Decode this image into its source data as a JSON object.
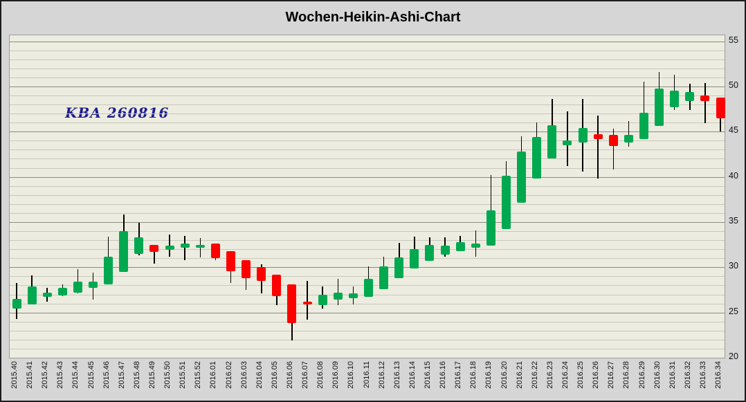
{
  "window": {
    "title": "Wochen-Heikin-Ashi-Chart",
    "annotation": "KBA 260816"
  },
  "chart_data": {
    "type": "candlestick",
    "subtype": "heikin-ashi-weekly",
    "title": "Wochen-Heikin-Ashi-Chart",
    "annotation": "KBA 260816",
    "legend_position": "none",
    "grid": "on",
    "y_axis": {
      "side": "right",
      "min": 20,
      "max": 55,
      "major_step": 5,
      "minor_step": 1,
      "tick_labels": [
        "20",
        "25",
        "30",
        "35",
        "40",
        "45",
        "50",
        "55"
      ]
    },
    "colors": {
      "up": "#00a94f",
      "down": "#fe0000",
      "wick": "#000000",
      "plot_bg": "#edece0",
      "window_bg": "#d6d6d6",
      "grid_minor": "#c9c8bb",
      "grid_major": "#8a8a82"
    },
    "candles": [
      {
        "x": "2015.40",
        "open": 25.4,
        "high": 28.3,
        "low": 24.3,
        "close": 26.5
      },
      {
        "x": "2015.41",
        "open": 25.9,
        "high": 29.1,
        "low": 25.9,
        "close": 27.9
      },
      {
        "x": "2015.42",
        "open": 26.7,
        "high": 27.7,
        "low": 26.2,
        "close": 27.2
      },
      {
        "x": "2015.43",
        "open": 26.9,
        "high": 28.1,
        "low": 26.8,
        "close": 27.7
      },
      {
        "x": "2015.44",
        "open": 27.2,
        "high": 29.8,
        "low": 27.1,
        "close": 28.4
      },
      {
        "x": "2015.45",
        "open": 27.7,
        "high": 29.4,
        "low": 26.4,
        "close": 28.4
      },
      {
        "x": "2015.46",
        "open": 28.1,
        "high": 33.4,
        "low": 28.1,
        "close": 31.2
      },
      {
        "x": "2015.47",
        "open": 29.5,
        "high": 35.8,
        "low": 29.5,
        "close": 34.0
      },
      {
        "x": "2015.48",
        "open": 31.5,
        "high": 34.9,
        "low": 31.3,
        "close": 33.3
      },
      {
        "x": "2015.49",
        "open": 32.5,
        "high": 32.5,
        "low": 30.4,
        "close": 31.7
      },
      {
        "x": "2015.50",
        "open": 31.9,
        "high": 33.6,
        "low": 31.2,
        "close": 32.4
      },
      {
        "x": "2015.51",
        "open": 32.2,
        "high": 33.5,
        "low": 30.8,
        "close": 32.6
      },
      {
        "x": "2015.52",
        "open": 32.2,
        "high": 33.2,
        "low": 31.1,
        "close": 32.5
      },
      {
        "x": "2016.01",
        "open": 32.6,
        "high": 32.6,
        "low": 30.8,
        "close": 31.0
      },
      {
        "x": "2016.02",
        "open": 31.8,
        "high": 31.8,
        "low": 28.3,
        "close": 29.6
      },
      {
        "x": "2016.03",
        "open": 30.8,
        "high": 30.8,
        "low": 27.5,
        "close": 28.8
      },
      {
        "x": "2016.04",
        "open": 30.0,
        "high": 30.3,
        "low": 27.1,
        "close": 28.5
      },
      {
        "x": "2016.05",
        "open": 29.2,
        "high": 29.2,
        "low": 25.8,
        "close": 26.8
      },
      {
        "x": "2016.06",
        "open": 28.1,
        "high": 28.1,
        "low": 21.9,
        "close": 23.8
      },
      {
        "x": "2016.07",
        "open": 26.2,
        "high": 28.5,
        "low": 24.2,
        "close": 25.9
      },
      {
        "x": "2016.08",
        "open": 25.8,
        "high": 27.9,
        "low": 25.4,
        "close": 27.0
      },
      {
        "x": "2016.09",
        "open": 26.4,
        "high": 28.7,
        "low": 25.8,
        "close": 27.2
      },
      {
        "x": "2016.10",
        "open": 26.6,
        "high": 27.9,
        "low": 25.9,
        "close": 27.1
      },
      {
        "x": "2016.11",
        "open": 26.7,
        "high": 30.1,
        "low": 26.7,
        "close": 28.7
      },
      {
        "x": "2016.12",
        "open": 27.6,
        "high": 31.2,
        "low": 27.6,
        "close": 30.1
      },
      {
        "x": "2016.13",
        "open": 28.8,
        "high": 32.7,
        "low": 28.8,
        "close": 31.1
      },
      {
        "x": "2016.14",
        "open": 29.9,
        "high": 33.4,
        "low": 29.9,
        "close": 32.0
      },
      {
        "x": "2016.15",
        "open": 30.7,
        "high": 33.3,
        "low": 30.7,
        "close": 32.5
      },
      {
        "x": "2016.16",
        "open": 31.4,
        "high": 33.3,
        "low": 31.2,
        "close": 32.4
      },
      {
        "x": "2016.17",
        "open": 31.8,
        "high": 33.5,
        "low": 31.8,
        "close": 32.8
      },
      {
        "x": "2016.18",
        "open": 32.2,
        "high": 34.1,
        "low": 31.2,
        "close": 32.6
      },
      {
        "x": "2016.19",
        "open": 32.4,
        "high": 40.2,
        "low": 32.4,
        "close": 36.3
      },
      {
        "x": "2016.20",
        "open": 34.2,
        "high": 41.7,
        "low": 34.2,
        "close": 40.1
      },
      {
        "x": "2016.21",
        "open": 37.1,
        "high": 44.5,
        "low": 37.1,
        "close": 42.8
      },
      {
        "x": "2016.22",
        "open": 39.8,
        "high": 46.0,
        "low": 39.8,
        "close": 44.4
      },
      {
        "x": "2016.23",
        "open": 42.0,
        "high": 48.6,
        "low": 42.0,
        "close": 45.7
      },
      {
        "x": "2016.24",
        "open": 43.5,
        "high": 47.2,
        "low": 41.2,
        "close": 44.0
      },
      {
        "x": "2016.25",
        "open": 43.8,
        "high": 48.6,
        "low": 40.6,
        "close": 45.4
      },
      {
        "x": "2016.26",
        "open": 44.7,
        "high": 46.8,
        "low": 39.8,
        "close": 44.2
      },
      {
        "x": "2016.27",
        "open": 44.6,
        "high": 45.3,
        "low": 40.8,
        "close": 43.4
      },
      {
        "x": "2016.28",
        "open": 43.8,
        "high": 46.2,
        "low": 43.3,
        "close": 44.6
      },
      {
        "x": "2016.29",
        "open": 44.2,
        "high": 50.5,
        "low": 44.2,
        "close": 47.1
      },
      {
        "x": "2016.30",
        "open": 45.6,
        "high": 51.6,
        "low": 45.6,
        "close": 49.8
      },
      {
        "x": "2016.31",
        "open": 47.7,
        "high": 51.3,
        "low": 47.4,
        "close": 49.5
      },
      {
        "x": "2016.32",
        "open": 48.4,
        "high": 50.3,
        "low": 47.4,
        "close": 49.4
      },
      {
        "x": "2016.33",
        "open": 49.0,
        "high": 50.4,
        "low": 45.9,
        "close": 48.4
      },
      {
        "x": "2016.34",
        "open": 48.8,
        "high": 48.8,
        "low": 45.0,
        "close": 46.5
      }
    ]
  }
}
